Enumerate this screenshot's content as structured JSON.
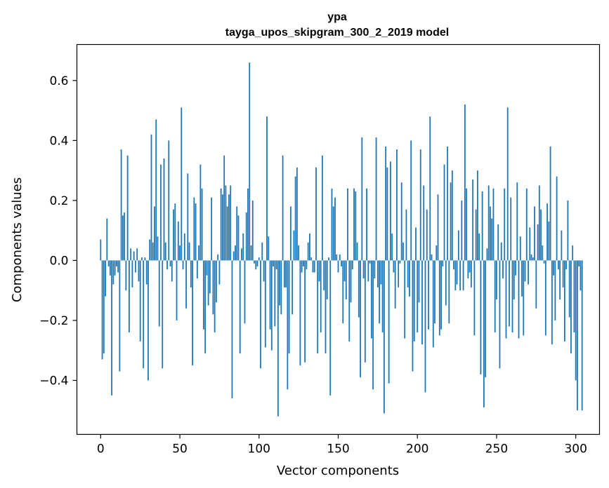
{
  "chart_data": {
    "type": "bar",
    "title": "ypa",
    "subtitle": "tayga_upos_skipgram_300_2_2019 model",
    "xlabel": "Vector components",
    "ylabel": "Components values",
    "xlim": [
      -15,
      315
    ],
    "ylim": [
      -0.58,
      0.72
    ],
    "xticks": [
      0,
      50,
      100,
      150,
      200,
      250,
      300
    ],
    "xtick_labels": [
      "0",
      "50",
      "100",
      "150",
      "200",
      "250",
      "300"
    ],
    "yticks": [
      -0.4,
      -0.2,
      0.0,
      0.2,
      0.4,
      0.6
    ],
    "ytick_labels": [
      "−0.4",
      "−0.2",
      "0.0",
      "0.2",
      "0.4",
      "0.6"
    ],
    "grid": false,
    "bar_color": "#1f77b4",
    "values": [
      0.07,
      -0.33,
      -0.31,
      -0.12,
      0.14,
      -0.02,
      -0.05,
      -0.45,
      -0.08,
      -0.05,
      -0.02,
      -0.04,
      -0.37,
      0.37,
      0.15,
      0.16,
      -0.1,
      0.35,
      -0.24,
      0.04,
      -0.09,
      0.03,
      -0.04,
      0.04,
      -0.07,
      -0.27,
      0.01,
      -0.36,
      0.01,
      -0.08,
      -0.4,
      0.07,
      0.42,
      0.06,
      0.18,
      0.47,
      0.08,
      -0.22,
      0.32,
      -0.36,
      0.34,
      0.06,
      -0.03,
      0.4,
      -0.02,
      -0.07,
      0.17,
      0.19,
      -0.2,
      0.13,
      0.05,
      0.51,
      -0.03,
      0.09,
      -0.16,
      0.29,
      0.06,
      -0.09,
      -0.35,
      0.21,
      0.19,
      -0.06,
      0.05,
      0.32,
      0.24,
      -0.23,
      -0.31,
      -0.05,
      -0.15,
      -0.11,
      0.21,
      -0.18,
      -0.24,
      -0.14,
      0.02,
      -0.08,
      0.24,
      0.22,
      0.35,
      0.25,
      0.18,
      0.22,
      0.25,
      -0.46,
      0.03,
      0.05,
      0.18,
      0.15,
      -0.31,
      0.04,
      0.09,
      -0.21,
      0.16,
      0.24,
      0.66,
      0.05,
      0.2,
      -0.01,
      -0.03,
      -0.02,
      0.01,
      -0.36,
      0.06,
      -0.07,
      -0.29,
      0.48,
      0.08,
      -0.23,
      -0.3,
      -0.02,
      -0.22,
      -0.03,
      -0.52,
      -0.15,
      -0.18,
      0.35,
      -0.09,
      -0.09,
      -0.43,
      -0.31,
      0.18,
      -0.18,
      0.1,
      0.28,
      0.31,
      0.05,
      -0.35,
      -0.04,
      -0.02,
      -0.34,
      -0.03,
      0.06,
      0.09,
      0.01,
      -0.04,
      -0.04,
      0.31,
      -0.31,
      -0.07,
      -0.24,
      0.35,
      -0.1,
      -0.31,
      -0.13,
      0.01,
      -0.45,
      0.24,
      0.18,
      0.21,
      0.02,
      -0.04,
      0.02,
      -0.02,
      -0.21,
      -0.07,
      -0.13,
      0.24,
      -0.27,
      -0.14,
      -0.03,
      0.24,
      0.23,
      0.06,
      -0.19,
      -0.39,
      0.41,
      -0.06,
      -0.34,
      0.24,
      -0.07,
      -0.01,
      -0.26,
      -0.43,
      -0.06,
      0.41,
      -0.09,
      -0.21,
      -0.08,
      -0.24,
      -0.51,
      0.38,
      0.31,
      -0.41,
      0.33,
      0.09,
      -0.04,
      -0.16,
      0.37,
      -0.09,
      -0.01,
      0.26,
      0.06,
      -0.26,
      0.17,
      -0.09,
      -0.12,
      0.4,
      -0.37,
      -0.27,
      0.11,
      -0.24,
      -0.14,
      0.37,
      -0.28,
      0.25,
      -0.44,
      0.17,
      -0.23,
      0.48,
      0.02,
      -0.29,
      -0.21,
      0.05,
      0.22,
      -0.25,
      -0.23,
      -0.02,
      0.32,
      -0.15,
      0.38,
      -0.21,
      0.26,
      0.3,
      -0.03,
      -0.1,
      -0.08,
      0.1,
      -0.1,
      0.2,
      -0.1,
      0.52,
      0.24,
      -0.06,
      -0.04,
      -0.09,
      0.27,
      -0.25,
      0.17,
      0.3,
      0.09,
      -0.38,
      0.23,
      -0.49,
      -0.39,
      0.04,
      0.25,
      0.18,
      0.14,
      0.24,
      -0.24,
      -0.13,
      0.12,
      -0.36,
      0.06,
      -0.06,
      0.24,
      -0.26,
      0.51,
      -0.22,
      0.21,
      -0.24,
      -0.13,
      -0.05,
      0.26,
      -0.26,
      0.08,
      -0.12,
      -0.25,
      -0.07,
      0.24,
      -0.08,
      0.11,
      0.02,
      0.01,
      0.18,
      -0.16,
      0.12,
      0.25,
      0.17,
      0.05,
      -0.01,
      -0.25,
      0.19,
      0.13,
      0.38,
      -0.28,
      -0.05,
      -0.2,
      0.28,
      -0.03,
      -0.13,
      0.1,
      -0.09,
      -0.27,
      -0.03,
      0.2,
      -0.19,
      -0.31,
      0.05,
      -0.24,
      -0.4,
      -0.5,
      -0.02,
      -0.1,
      -0.5
    ]
  }
}
